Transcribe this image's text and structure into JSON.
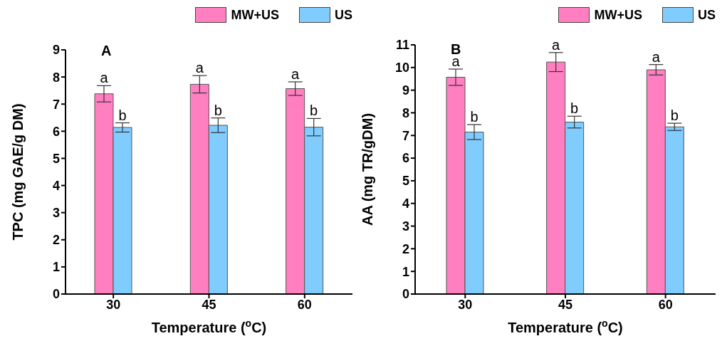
{
  "chart_data": [
    {
      "type": "bar",
      "title": "A",
      "xlabel": "Temperature ($^{o}$C)",
      "ylabel": "TPC (mg GAE/g DM)",
      "categories": [
        "30",
        "45",
        "60"
      ],
      "series": [
        {
          "name": "MW+US",
          "color": "#ff7fc0",
          "values": [
            7.38,
            7.73,
            7.57
          ],
          "errors": [
            0.3,
            0.32,
            0.25
          ]
        },
        {
          "name": "US",
          "color": "#80ccff",
          "values": [
            6.14,
            6.22,
            6.15
          ],
          "errors": [
            0.17,
            0.27,
            0.32
          ]
        }
      ],
      "ylim": [
        0,
        9
      ],
      "yticks": [
        0,
        1,
        2,
        3,
        4,
        5,
        6,
        7,
        8,
        9
      ],
      "grid": false,
      "legend": "top right",
      "annotations": [
        {
          "text": "a",
          "x": "30",
          "y": 7.68
        },
        {
          "text": "b",
          "x": "30",
          "y": 6.31
        },
        {
          "text": "a",
          "x": "45",
          "y": 8.05
        },
        {
          "text": "b",
          "x": "45",
          "y": 6.49
        },
        {
          "text": "a",
          "x": "60",
          "y": 7.82
        },
        {
          "text": "b",
          "x": "60",
          "y": 6.47
        }
      ]
    },
    {
      "type": "bar",
      "title": "B",
      "xlabel": "Temperature ($^{o}$C)",
      "ylabel": "AA (mg TR/gDM)",
      "categories": [
        "30",
        "45",
        "60"
      ],
      "series": [
        {
          "name": "MW+US",
          "color": "#ff7fc0",
          "values": [
            9.57,
            10.24,
            9.9
          ],
          "errors": [
            0.36,
            0.42,
            0.23
          ]
        },
        {
          "name": "US",
          "color": "#80ccff",
          "values": [
            7.15,
            7.59,
            7.38
          ],
          "errors": [
            0.33,
            0.26,
            0.16
          ]
        }
      ],
      "ylim": [
        0,
        11
      ],
      "yticks": [
        0,
        1,
        2,
        3,
        4,
        5,
        6,
        7,
        8,
        9,
        10,
        11
      ],
      "grid": false,
      "legend": "top right",
      "annotations": [
        {
          "text": "a",
          "x": "30",
          "y": 9.93
        },
        {
          "text": "b",
          "x": "30",
          "y": 7.48
        },
        {
          "text": "a",
          "x": "45",
          "y": 10.67
        },
        {
          "text": "b",
          "x": "45",
          "y": 7.85
        },
        {
          "text": "a",
          "x": "60",
          "y": 10.13
        },
        {
          "text": "b",
          "x": "60",
          "y": 7.54
        }
      ]
    }
  ]
}
